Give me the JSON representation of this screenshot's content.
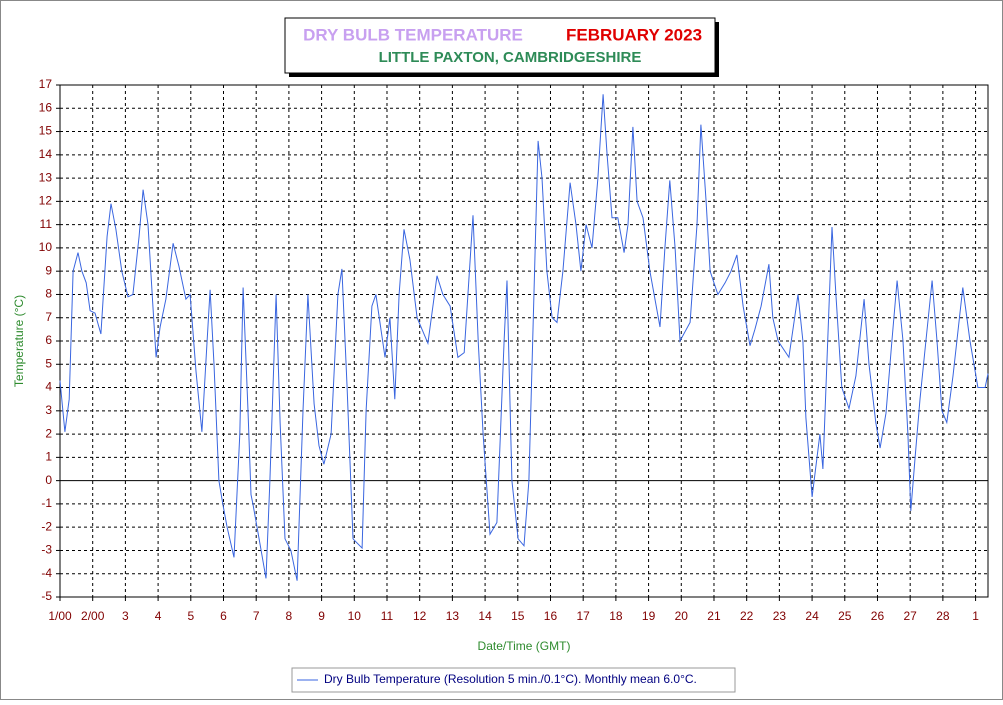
{
  "chart_data": {
    "type": "line",
    "title": "DRY BULB TEMPERATURE",
    "title_date": "FEBRUARY 2023",
    "subtitle": "LITTLE PAXTON, CAMBRIDGESHIRE",
    "ylabel": "Temperature (°C)",
    "xlabel": "Date/Time (GMT)",
    "xlim": [
      1,
      29.38
    ],
    "ylim": [
      -5,
      17
    ],
    "yticks": [
      -5,
      -4,
      -3,
      -2,
      -1,
      0,
      1,
      2,
      3,
      4,
      5,
      6,
      7,
      8,
      9,
      10,
      11,
      12,
      13,
      14,
      15,
      16,
      17
    ],
    "xticks": [
      {
        "value": 1,
        "label": "1/00"
      },
      {
        "value": 2,
        "label": "2/00"
      },
      3,
      4,
      5,
      6,
      7,
      8,
      9,
      10,
      11,
      12,
      13,
      14,
      15,
      16,
      17,
      18,
      19,
      20,
      21,
      22,
      23,
      24,
      25,
      26,
      27,
      28,
      {
        "value": 29,
        "label": "1"
      }
    ],
    "grid": true,
    "x": [
      1.0,
      1.15,
      1.28,
      1.4,
      1.55,
      1.67,
      1.8,
      1.92,
      2.07,
      2.25,
      2.44,
      2.56,
      2.71,
      2.89,
      3.08,
      3.23,
      3.42,
      3.54,
      3.69,
      3.84,
      3.94,
      4.06,
      4.24,
      4.46,
      4.64,
      4.85,
      4.98,
      5.16,
      5.34,
      5.5,
      5.59,
      5.71,
      5.86,
      5.98,
      6.11,
      6.32,
      6.5,
      6.6,
      6.75,
      6.84,
      6.9,
      7.09,
      7.3,
      7.42,
      7.61,
      7.73,
      7.88,
      8.06,
      8.25,
      8.43,
      8.58,
      8.77,
      8.92,
      9.07,
      9.29,
      9.5,
      9.62,
      9.78,
      9.96,
      10.24,
      10.36,
      10.54,
      10.66,
      10.94,
      11.09,
      11.24,
      11.37,
      11.52,
      11.7,
      11.92,
      12.25,
      12.53,
      12.71,
      12.93,
      13.17,
      13.36,
      13.63,
      13.79,
      13.94,
      14.15,
      14.36,
      14.58,
      14.67,
      14.82,
      15.01,
      15.19,
      15.34,
      15.62,
      15.74,
      15.89,
      16.05,
      16.2,
      16.38,
      16.6,
      16.78,
      16.93,
      17.09,
      17.27,
      17.45,
      17.61,
      17.73,
      17.88,
      18.06,
      18.25,
      18.37,
      18.52,
      18.65,
      18.83,
      19.04,
      19.35,
      19.5,
      19.65,
      19.81,
      19.96,
      20.27,
      20.48,
      20.6,
      20.76,
      20.88,
      21.12,
      21.34,
      21.52,
      21.7,
      21.89,
      22.1,
      22.25,
      22.44,
      22.68,
      22.8,
      22.96,
      23.29,
      23.57,
      23.72,
      23.81,
      24.0,
      24.24,
      24.33,
      24.61,
      24.73,
      24.91,
      25.13,
      25.34,
      25.59,
      25.74,
      25.95,
      26.08,
      26.26,
      26.44,
      26.6,
      26.78,
      26.93,
      27.02,
      27.15,
      27.3,
      27.48,
      27.67,
      27.82,
      27.97,
      28.12,
      28.31,
      28.61,
      28.83,
      29.07,
      29.29,
      29.38
    ],
    "series": [
      {
        "name": "Dry Bulb Temperature (Resolution 5 min./0.1°C). Monthly mean 6.0°C.",
        "color": "#3a66e0",
        "values": [
          4.3,
          2.1,
          3.5,
          9,
          9.8,
          9,
          8.5,
          7.3,
          7.2,
          6.3,
          10.5,
          11.9,
          10.8,
          9,
          7.9,
          8,
          10.5,
          12.5,
          11,
          7.5,
          5.3,
          6.6,
          7.8,
          10.2,
          9.2,
          7.8,
          8,
          4.7,
          2.1,
          6,
          8.2,
          5,
          0,
          -1,
          -2,
          -3.3,
          2,
          8.3,
          3,
          -0.6,
          -1,
          -2.5,
          -4.2,
          0,
          8,
          2.5,
          -2.5,
          -3,
          -4.3,
          3,
          8,
          3.3,
          1.5,
          0.7,
          2,
          8,
          9.1,
          4,
          -2.5,
          -2.9,
          3,
          7.5,
          8,
          5.3,
          7,
          3.5,
          8,
          10.8,
          9.5,
          7,
          5.9,
          8.8,
          8,
          7.5,
          5.3,
          5.5,
          11.4,
          6,
          2,
          -2.3,
          -1.8,
          6,
          8.6,
          0,
          -2.5,
          -2.8,
          0,
          14.6,
          13,
          9,
          7,
          6.8,
          9,
          12.8,
          11,
          9,
          11,
          10,
          13,
          16.6,
          14,
          11.3,
          11.3,
          9.8,
          11,
          15.2,
          12,
          11.3,
          9,
          6.6,
          10,
          12.9,
          10,
          6,
          6.8,
          11,
          15.3,
          12,
          9,
          8,
          8.5,
          9,
          9.7,
          7.5,
          5.8,
          6.5,
          7.5,
          9.3,
          7,
          6,
          5.3,
          8,
          6,
          2.7,
          -0.7,
          2,
          0.5,
          10.9,
          8,
          4,
          3.1,
          4.5,
          7.8,
          5,
          2.5,
          1.4,
          2.9,
          6,
          8.6,
          6,
          2,
          -1.3,
          1,
          3.5,
          6,
          8.6,
          6,
          3,
          2.5,
          4.5,
          8.3,
          6,
          4,
          4,
          4.6
        ]
      }
    ]
  }
}
